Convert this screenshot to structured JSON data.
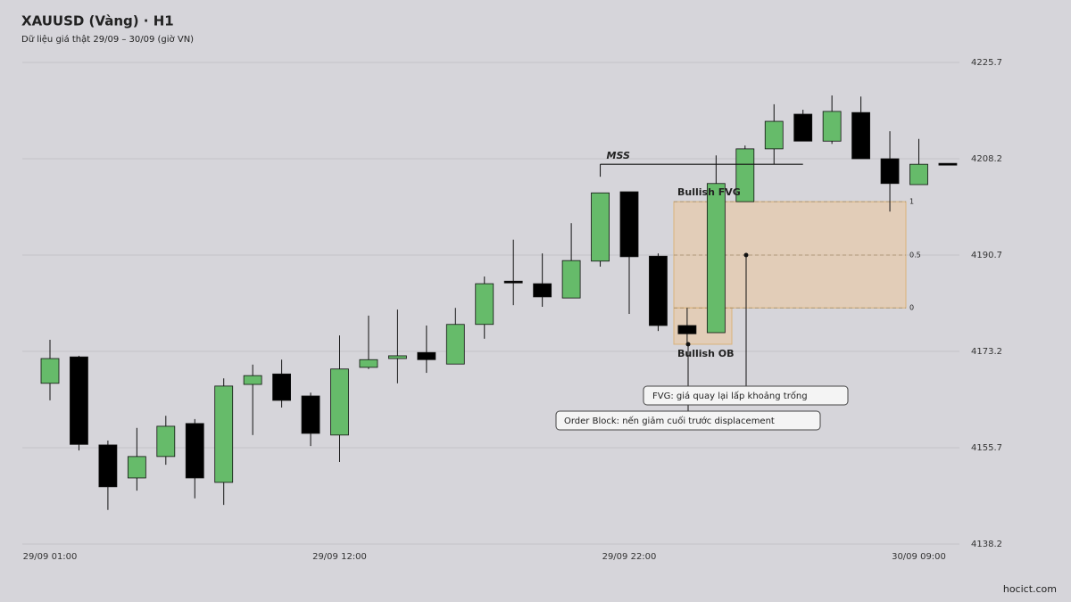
{
  "chart_data": {
    "type": "candlestick",
    "title": "XAUUSD (Vàng) · H1",
    "subtitle": "Dữ liệu giá thật 29/09 – 30/09 (giờ VN)",
    "source": "hocict.com",
    "categories": [
      "29/09 01:00",
      null,
      null,
      null,
      null,
      null,
      null,
      null,
      null,
      null,
      "29/09 12:00",
      null,
      null,
      null,
      null,
      null,
      null,
      null,
      null,
      null,
      "29/09 22:00",
      null,
      null,
      null,
      null,
      null,
      null,
      null,
      null,
      null,
      "30/09 09:00",
      null
    ],
    "open": [
      4167.4,
      4172.2,
      4156.2,
      4150.2,
      4154.1,
      4160.1,
      4149.4,
      4167.2,
      4169.1,
      4165.1,
      4158.0,
      4170.3,
      4171.9,
      4173.0,
      4170.9,
      4178.1,
      4185.8,
      4185.5,
      4182.9,
      4189.6,
      4202.2,
      4190.5,
      4177.9,
      4176.6,
      4200.4,
      4210.0,
      4216.3,
      4211.4,
      4216.6,
      4208.2,
      4203.5,
      4207.2
    ],
    "high": [
      4175.3,
      4172.4,
      4157.0,
      4159.3,
      4161.5,
      4160.9,
      4168.3,
      4170.8,
      4171.7,
      4165.7,
      4176.1,
      4179.7,
      4180.8,
      4177.9,
      4181.1,
      4186.8,
      4193.5,
      4191.0,
      4196.5,
      4202.0,
      4202.2,
      4191.0,
      4181.1,
      4208.8,
      4210.6,
      4218.1,
      4217.1,
      4219.7,
      4219.5,
      4213.2,
      4211.8,
      4207.2
    ],
    "low": [
      4164.3,
      4155.2,
      4144.4,
      4147.9,
      4152.6,
      4146.5,
      4145.3,
      4158.0,
      4163.0,
      4156.0,
      4153.1,
      4170.0,
      4167.4,
      4169.3,
      4170.9,
      4175.5,
      4181.6,
      4181.3,
      4182.9,
      4188.6,
      4180.0,
      4176.9,
      4174.5,
      4176.6,
      4200.4,
      4207.2,
      4211.4,
      4210.9,
      4208.2,
      4198.6,
      4203.5,
      4207.2
    ],
    "close": [
      4171.9,
      4156.3,
      4148.6,
      4154.1,
      4159.6,
      4150.2,
      4166.9,
      4168.8,
      4164.3,
      4158.3,
      4170.0,
      4171.7,
      4172.4,
      4171.7,
      4178.1,
      4185.5,
      4185.8,
      4183.1,
      4189.7,
      4202.0,
      4190.4,
      4177.9,
      4176.4,
      4203.7,
      4210.0,
      4215.0,
      4211.4,
      4216.8,
      4208.2,
      4203.7,
      4207.2,
      4207.2
    ],
    "up_color": "#66bb6a",
    "down_color": "#000000",
    "ylim": [
      4138.2,
      4225.7
    ],
    "yticks": [
      4138.2,
      4155.7,
      4173.2,
      4190.7,
      4208.2,
      4225.7
    ],
    "grid": true,
    "mss": {
      "label": "MSS",
      "level": 4207.2
    },
    "fvg": {
      "label": "Bullish FVG",
      "top": 4200.4,
      "bottom": 4181.1,
      "levels": [
        {
          "value": 4200.4,
          "label": "1"
        },
        {
          "value": 4190.7,
          "label": "0.5"
        },
        {
          "value": 4181.1,
          "label": "0"
        }
      ],
      "note": "FVG: giá quay lại lấp khoảng trống"
    },
    "ob": {
      "label": "Bullish OB",
      "top": 4181.1,
      "bottom": 4174.5,
      "note": "Order Block: nến giảm cuối trước displacement"
    }
  }
}
